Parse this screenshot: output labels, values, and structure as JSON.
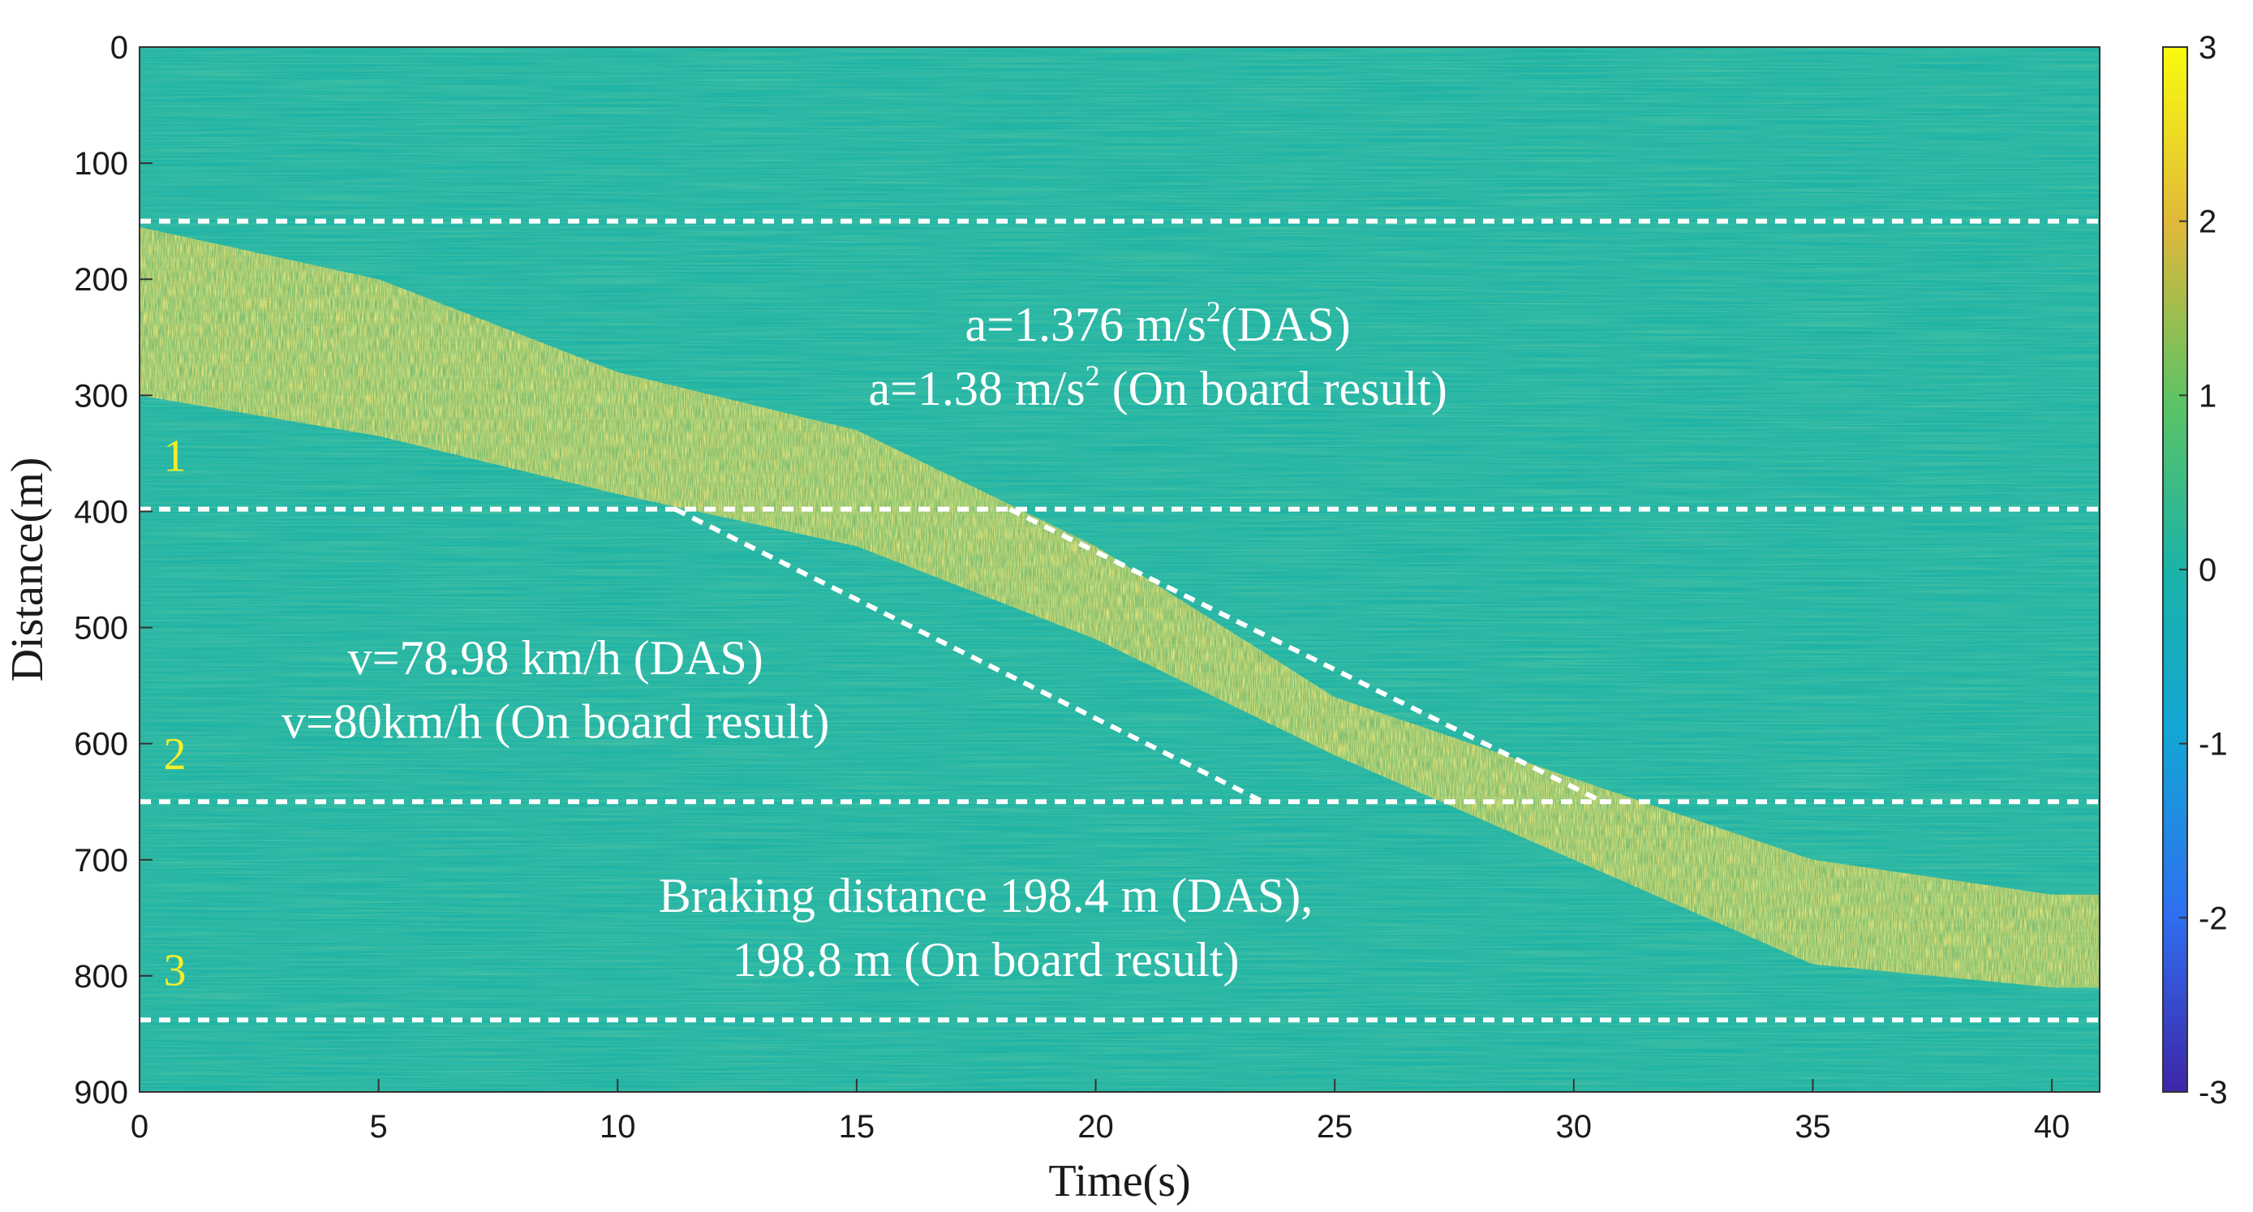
{
  "chart_data": {
    "type": "heatmap",
    "title": "",
    "xlabel": "Time(s)",
    "ylabel": "Distance(m)",
    "xlim": [
      0,
      41
    ],
    "ylim": [
      900,
      0
    ],
    "x_ticks": [
      0,
      5,
      10,
      15,
      20,
      25,
      30,
      35,
      40
    ],
    "y_ticks": [
      0,
      100,
      200,
      300,
      400,
      500,
      600,
      700,
      800,
      900
    ],
    "colorbar": {
      "min": -3,
      "max": 3,
      "ticks": [
        3,
        2,
        1,
        0,
        -1,
        -2,
        -3
      ],
      "colors": [
        "#3e26a8",
        "#2f6ff0",
        "#14a5d6",
        "#1bb3a8",
        "#5cc364",
        "#e0b83a",
        "#f9fb0e"
      ]
    },
    "background_value": 0.3,
    "signal_band": [
      {
        "t": 0,
        "d_min": 155,
        "d_max": 300
      },
      {
        "t": 5,
        "d_min": 200,
        "d_max": 335
      },
      {
        "t": 10,
        "d_min": 280,
        "d_max": 385
      },
      {
        "t": 15,
        "d_min": 330,
        "d_max": 430
      },
      {
        "t": 20,
        "d_min": 430,
        "d_max": 510
      },
      {
        "t": 25,
        "d_min": 560,
        "d_max": 610
      },
      {
        "t": 30,
        "d_min": 630,
        "d_max": 700
      },
      {
        "t": 35,
        "d_min": 700,
        "d_max": 790
      },
      {
        "t": 40,
        "d_min": 730,
        "d_max": 810
      }
    ],
    "horizontal_lines": [
      150,
      398,
      650,
      838
    ],
    "diagonal_lines": [
      {
        "x": [
          11.2,
          23.5
        ],
        "y": [
          398,
          650
        ]
      },
      {
        "x": [
          18.2,
          30.6
        ],
        "y": [
          398,
          650
        ]
      }
    ],
    "section_markers": [
      {
        "label": "1",
        "x": 0.5,
        "y": 365
      },
      {
        "label": "2",
        "x": 0.5,
        "y": 622
      },
      {
        "label": "3",
        "x": 0.5,
        "y": 808
      }
    ],
    "annotations": {
      "accel": {
        "line1_main": "a=1.376 m/s",
        "line1_sup": "2",
        "line1_tail": "(DAS)",
        "line2_main": "a=1.38 m/s",
        "line2_sup": "2",
        "line2_tail": " (On board result)",
        "x": 21.3,
        "y": [
          253,
          308
        ]
      },
      "speed": {
        "line1": "v=78.98 km/h (DAS)",
        "line2": "v=80km/h (On board result)",
        "x": 8.7,
        "y": [
          540,
          595
        ]
      },
      "braking": {
        "line1": "Braking distance 198.4 m (DAS),",
        "line2": "198.8 m (On board result)",
        "x": 17.7,
        "y": [
          745,
          800
        ]
      }
    }
  }
}
